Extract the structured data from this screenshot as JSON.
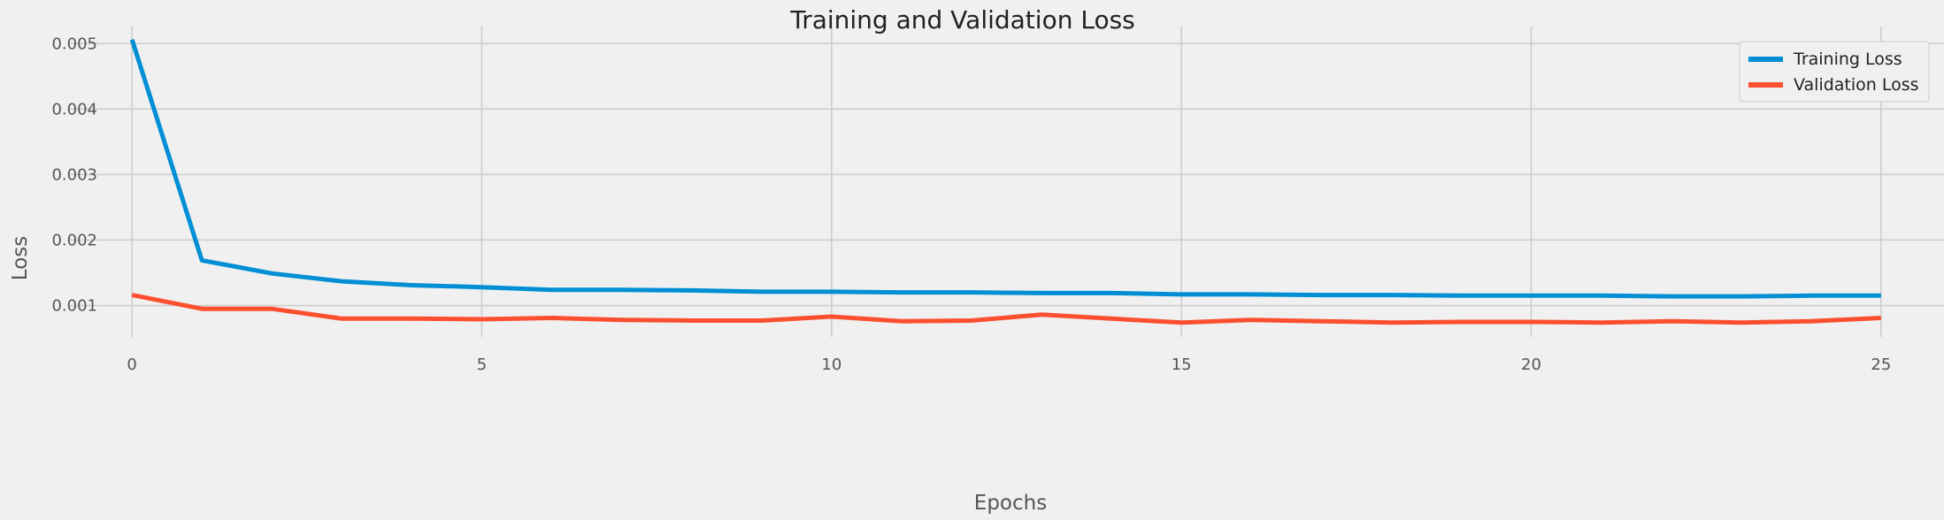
{
  "chart_data": {
    "type": "line",
    "title": "Training and Validation Loss",
    "xlabel": "Epochs",
    "ylabel": "Loss",
    "xlim": [
      -0.9,
      25.9
    ],
    "ylim": [
      0.00052,
      0.00526
    ],
    "x_ticks": [
      0,
      5,
      10,
      15,
      20,
      25
    ],
    "y_ticks": [
      0.001,
      0.002,
      0.003,
      0.004,
      0.005
    ],
    "y_tick_labels": [
      "0.001",
      "0.002",
      "0.003",
      "0.004",
      "0.005"
    ],
    "grid": true,
    "legend": "top-right",
    "x": [
      0,
      1,
      2,
      3,
      4,
      5,
      6,
      7,
      8,
      9,
      10,
      11,
      12,
      13,
      14,
      15,
      16,
      17,
      18,
      19,
      20,
      21,
      22,
      23,
      24,
      25
    ],
    "series": [
      {
        "name": "Training Loss",
        "color": "#008fd5",
        "values": [
          0.00506,
          0.00169,
          0.00149,
          0.00137,
          0.00131,
          0.00128,
          0.00124,
          0.00124,
          0.00123,
          0.00121,
          0.00121,
          0.0012,
          0.0012,
          0.00119,
          0.00119,
          0.00117,
          0.00117,
          0.00116,
          0.00116,
          0.00115,
          0.00115,
          0.00115,
          0.00114,
          0.00114,
          0.00115,
          0.00115
        ]
      },
      {
        "name": "Validation Loss",
        "color": "#fc4f30",
        "values": [
          0.00116,
          0.00095,
          0.00095,
          0.0008,
          0.0008,
          0.00079,
          0.00081,
          0.00078,
          0.00077,
          0.00077,
          0.00083,
          0.00076,
          0.00077,
          0.00086,
          0.0008,
          0.00074,
          0.00078,
          0.00076,
          0.00074,
          0.00075,
          0.00075,
          0.00074,
          0.00076,
          0.00074,
          0.00076,
          0.00081
        ]
      }
    ]
  }
}
